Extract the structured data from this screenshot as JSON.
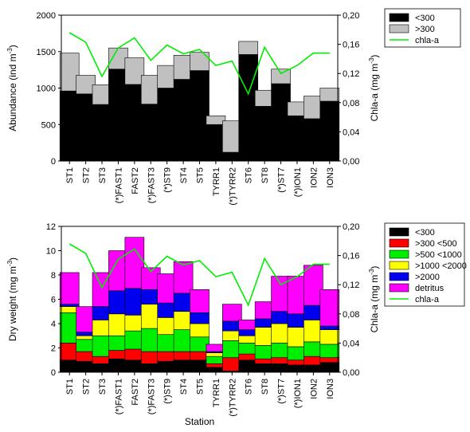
{
  "chart_data": [
    {
      "type": "bar",
      "stacked": true,
      "secondary_line": "chla-a",
      "categories": [
        "ST1",
        "ST2",
        "ST3",
        "(*)FAST1",
        "FAST2",
        "(*)FAST3",
        "(*)ST9",
        "ST4",
        "ST5",
        "TYRR1",
        "(*)TYRR2",
        "ST6",
        "ST8",
        "(*)ST7",
        "(*)ION1",
        "ION2",
        "ION3"
      ],
      "ylabel": "Abundance (ind m",
      "ylabel_sup": "-3",
      "ylabel_end": ")",
      "ylim": [
        0,
        2000
      ],
      "yticks": [
        "0",
        "500",
        "1000",
        "1500",
        "2000"
      ],
      "y2label": "Chla-a (mg m",
      "y2label_sup": "-3",
      "y2label_end": ")",
      "y2lim": [
        0,
        0.2
      ],
      "y2ticks": [
        "0,00",
        "0,04",
        "0,08",
        "0,12",
        "0,16",
        "0,20"
      ],
      "legend_position": "top-right",
      "series": [
        {
          "name": "<300",
          "color": "#000000",
          "values": [
            960,
            920,
            775,
            1260,
            1050,
            780,
            1000,
            1120,
            1240,
            500,
            120,
            1460,
            750,
            1060,
            620,
            580,
            820
          ]
        },
        {
          "name": ">300",
          "color": "#c0c0c0",
          "values": [
            520,
            255,
            270,
            290,
            365,
            395,
            310,
            330,
            250,
            120,
            430,
            180,
            220,
            200,
            190,
            310,
            180
          ]
        }
      ],
      "line": {
        "name": "chla-a",
        "color": "#00ee00",
        "values": [
          0.176,
          0.163,
          0.116,
          0.155,
          0.169,
          0.138,
          0.159,
          0.147,
          0.153,
          0.131,
          0.137,
          0.092,
          0.156,
          0.12,
          0.131,
          0.148,
          0.148
        ]
      }
    },
    {
      "type": "bar",
      "stacked": true,
      "secondary_line": "chla-a",
      "categories": [
        "ST1",
        "ST2",
        "ST3",
        "(*)FAST1",
        "FAST2",
        "(*)FAST3",
        "(*)ST9",
        "ST4",
        "ST5",
        "TYRR1",
        "(*)TYRR2",
        "ST6",
        "ST8",
        "(*)ST7",
        "(*)ION1",
        "ION2",
        "ION3"
      ],
      "xlabel": "Station",
      "ylabel": "Dry weight (mg m",
      "ylabel_sup": "-3",
      "ylabel_end": ")",
      "ylim": [
        0,
        12
      ],
      "yticks": [
        "0",
        "2",
        "4",
        "6",
        "8",
        "10",
        "12"
      ],
      "y2label": "Chla-a (mg m",
      "y2label_sup": "-3",
      "y2label_end": ")",
      "y2lim": [
        0,
        0.2
      ],
      "y2ticks": [
        "0,00",
        "0,04",
        "0,08",
        "0,12",
        "0,16",
        "0,20"
      ],
      "legend_position": "top-right",
      "series": [
        {
          "name": "<300",
          "color": "#000000",
          "values": [
            1.0,
            0.9,
            0.7,
            1.1,
            1.0,
            0.7,
            0.9,
            1.0,
            1.0,
            0.4,
            0.1,
            1.0,
            0.7,
            0.7,
            0.6,
            0.6,
            0.8
          ]
        },
        {
          "name": ">300 <500",
          "color": "#ff0000",
          "values": [
            1.4,
            0.8,
            0.6,
            0.7,
            0.9,
            1.0,
            0.8,
            0.7,
            0.7,
            0.3,
            1.1,
            0.5,
            0.4,
            0.5,
            0.4,
            0.7,
            0.4
          ]
        },
        {
          "name": ">500 <1000",
          "color": "#00ee00",
          "values": [
            2.5,
            1.0,
            1.7,
            1.2,
            1.5,
            1.9,
            1.4,
            1.8,
            1.2,
            0.6,
            1.4,
            0.9,
            1.1,
            1.2,
            1.1,
            1.2,
            1.1
          ]
        },
        {
          "name": ">1000 <2000",
          "color": "#ffff00",
          "values": [
            0.5,
            0.3,
            1.3,
            1.8,
            1.3,
            2.0,
            1.4,
            1.5,
            1.1,
            0.3,
            0.8,
            0.6,
            1.5,
            1.6,
            1.6,
            1.8,
            1.2
          ]
        },
        {
          "name": ">2000",
          "color": "#0000ee",
          "values": [
            0.2,
            0.3,
            1.1,
            1.9,
            2.2,
            1.2,
            1.2,
            1.5,
            0.9,
            0.1,
            0.8,
            0.5,
            0.7,
            1.0,
            1.1,
            1.2,
            0.3
          ]
        },
        {
          "name": "detritus",
          "color": "#ff00ff",
          "values": [
            2.6,
            2.1,
            2.8,
            3.3,
            4.2,
            1.8,
            2.4,
            2.6,
            1.9,
            0.6,
            1.4,
            0.8,
            1.4,
            2.9,
            3.1,
            3.3,
            3.0
          ]
        }
      ],
      "line": {
        "name": "chla-a",
        "color": "#00ee00",
        "values": [
          0.176,
          0.163,
          0.116,
          0.155,
          0.169,
          0.138,
          0.159,
          0.147,
          0.153,
          0.131,
          0.137,
          0.092,
          0.156,
          0.12,
          0.131,
          0.148,
          0.148
        ]
      }
    }
  ]
}
